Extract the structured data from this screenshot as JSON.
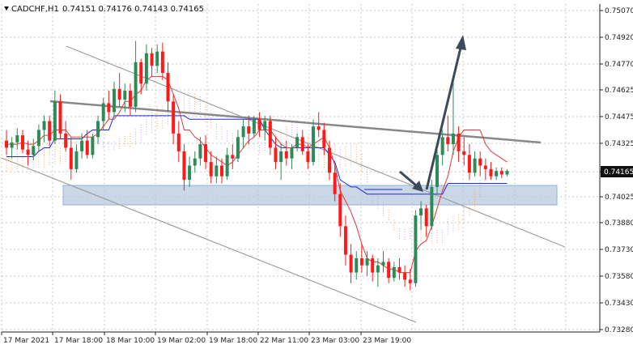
{
  "header": {
    "symbol_timeframe": "CADCHF,H1",
    "ohlc": "0.74151 0.74176 0.74143 0.74165"
  },
  "price_label": "0.74165",
  "colors": {
    "bull": "#2e8b57",
    "bear": "#ff1a1a",
    "tenkan": "#e53935",
    "kijun": "#1f2ad6",
    "chikou": "#9c4dcc",
    "cloud_lower": "#f5a35c",
    "cloud_upper": "#c9a3e6",
    "channel": "#9e9e9e",
    "trendline": "#888888",
    "arrow": "#3d4a5c",
    "support_zone": "#b7c9de"
  },
  "chart_data": {
    "type": "candlestick",
    "title": "",
    "xlabel": "",
    "ylabel": "",
    "ylim": [
      0.7328,
      0.7507
    ],
    "grid": true,
    "y_ticks": [
      "0.75070",
      "0.74920",
      "0.74770",
      "0.74625",
      "0.74475",
      "0.74325",
      "0.74165",
      "0.74025",
      "0.73880",
      "0.73730",
      "0.73580",
      "0.73430",
      "0.73280"
    ],
    "x_ticks": [
      "17 Mar 2021",
      "17 Mar 18:00",
      "18 Mar 10:00",
      "19 Mar 02:00",
      "19 Mar 18:00",
      "22 Mar 11:00",
      "23 Mar 03:00",
      "23 Mar 19:00"
    ],
    "candles": [
      [
        0.7434,
        0.744,
        0.7426,
        0.743
      ],
      [
        0.743,
        0.7436,
        0.7424,
        0.7433
      ],
      [
        0.7433,
        0.7441,
        0.7429,
        0.7437
      ],
      [
        0.7437,
        0.744,
        0.7427,
        0.7429
      ],
      [
        0.7429,
        0.7434,
        0.742,
        0.7426
      ],
      [
        0.7426,
        0.7435,
        0.7423,
        0.7431
      ],
      [
        0.7431,
        0.7443,
        0.7428,
        0.744
      ],
      [
        0.744,
        0.7448,
        0.7433,
        0.7445
      ],
      [
        0.7445,
        0.7448,
        0.7431,
        0.7434
      ],
      [
        0.7434,
        0.7462,
        0.7432,
        0.7456
      ],
      [
        0.7456,
        0.746,
        0.7435,
        0.7438
      ],
      [
        0.7438,
        0.7445,
        0.7428,
        0.743
      ],
      [
        0.743,
        0.7436,
        0.7412,
        0.7418
      ],
      [
        0.7418,
        0.7432,
        0.7416,
        0.7428
      ],
      [
        0.7428,
        0.7438,
        0.7424,
        0.7434
      ],
      [
        0.7434,
        0.744,
        0.7424,
        0.7426
      ],
      [
        0.7426,
        0.7438,
        0.7424,
        0.7436
      ],
      [
        0.7436,
        0.7448,
        0.7432,
        0.7445
      ],
      [
        0.7445,
        0.7458,
        0.744,
        0.7455
      ],
      [
        0.7455,
        0.7462,
        0.7446,
        0.745
      ],
      [
        0.745,
        0.7467,
        0.7447,
        0.7463
      ],
      [
        0.7463,
        0.7472,
        0.7453,
        0.7457
      ],
      [
        0.7457,
        0.7466,
        0.745,
        0.7462
      ],
      [
        0.7462,
        0.7466,
        0.7448,
        0.7453
      ],
      [
        0.7453,
        0.749,
        0.745,
        0.7478
      ],
      [
        0.7478,
        0.748,
        0.746,
        0.7466
      ],
      [
        0.7466,
        0.7488,
        0.7462,
        0.7483
      ],
      [
        0.7483,
        0.7486,
        0.747,
        0.7476
      ],
      [
        0.7476,
        0.7488,
        0.7472,
        0.7484
      ],
      [
        0.7484,
        0.7489,
        0.7468,
        0.7472
      ],
      [
        0.7472,
        0.7478,
        0.745,
        0.7456
      ],
      [
        0.7456,
        0.746,
        0.7432,
        0.7438
      ],
      [
        0.7438,
        0.7445,
        0.7422,
        0.7428
      ],
      [
        0.7428,
        0.7432,
        0.7406,
        0.7412
      ],
      [
        0.7412,
        0.7425,
        0.7408,
        0.742
      ],
      [
        0.742,
        0.7428,
        0.7416,
        0.7424
      ],
      [
        0.7424,
        0.7436,
        0.742,
        0.7432
      ],
      [
        0.7432,
        0.7437,
        0.7418,
        0.7422
      ],
      [
        0.7422,
        0.7428,
        0.741,
        0.7414
      ],
      [
        0.7414,
        0.7425,
        0.741,
        0.742
      ],
      [
        0.742,
        0.7424,
        0.741,
        0.7414
      ],
      [
        0.7414,
        0.743,
        0.7412,
        0.7426
      ],
      [
        0.7426,
        0.7432,
        0.7418,
        0.7424
      ],
      [
        0.7424,
        0.744,
        0.7422,
        0.7436
      ],
      [
        0.7436,
        0.7446,
        0.743,
        0.7442
      ],
      [
        0.7442,
        0.7448,
        0.7432,
        0.7438
      ],
      [
        0.7438,
        0.7448,
        0.7436,
        0.7446
      ],
      [
        0.7446,
        0.745,
        0.7436,
        0.744
      ],
      [
        0.744,
        0.7448,
        0.7434,
        0.7445
      ],
      [
        0.7445,
        0.7448,
        0.7426,
        0.743
      ],
      [
        0.743,
        0.7436,
        0.7418,
        0.7422
      ],
      [
        0.7422,
        0.7432,
        0.7412,
        0.7428
      ],
      [
        0.7428,
        0.7434,
        0.742,
        0.7424
      ],
      [
        0.7424,
        0.7432,
        0.7418,
        0.743
      ],
      [
        0.743,
        0.7438,
        0.7428,
        0.7436
      ],
      [
        0.7436,
        0.744,
        0.7426,
        0.7428
      ],
      [
        0.7428,
        0.7432,
        0.7418,
        0.7422
      ],
      [
        0.7422,
        0.7446,
        0.742,
        0.7442
      ],
      [
        0.7442,
        0.745,
        0.7436,
        0.744
      ],
      [
        0.744,
        0.7444,
        0.7426,
        0.743
      ],
      [
        0.743,
        0.7434,
        0.7412,
        0.7416
      ],
      [
        0.7416,
        0.742,
        0.74,
        0.7404
      ],
      [
        0.7404,
        0.741,
        0.738,
        0.7386
      ],
      [
        0.7386,
        0.7392,
        0.7364,
        0.737
      ],
      [
        0.737,
        0.7376,
        0.7354,
        0.736
      ],
      [
        0.736,
        0.7372,
        0.7356,
        0.7368
      ],
      [
        0.7368,
        0.7376,
        0.736,
        0.7364
      ],
      [
        0.7364,
        0.7372,
        0.7358,
        0.7368
      ],
      [
        0.7368,
        0.737,
        0.7355,
        0.736
      ],
      [
        0.736,
        0.7368,
        0.7352,
        0.7364
      ],
      [
        0.7364,
        0.7372,
        0.736,
        0.7366
      ],
      [
        0.7366,
        0.7368,
        0.7354,
        0.7357
      ],
      [
        0.7357,
        0.7366,
        0.7355,
        0.7363
      ],
      [
        0.7363,
        0.7368,
        0.7356,
        0.736
      ],
      [
        0.736,
        0.7364,
        0.7352,
        0.7356
      ],
      [
        0.7356,
        0.7362,
        0.735,
        0.7354
      ],
      [
        0.7354,
        0.7395,
        0.7352,
        0.7392
      ],
      [
        0.7392,
        0.74,
        0.7384,
        0.7396
      ],
      [
        0.7396,
        0.7398,
        0.738,
        0.7386
      ],
      [
        0.7386,
        0.7412,
        0.7384,
        0.7408
      ],
      [
        0.7408,
        0.743,
        0.7404,
        0.7426
      ],
      [
        0.7426,
        0.744,
        0.742,
        0.7436
      ],
      [
        0.7436,
        0.7448,
        0.7428,
        0.7432
      ],
      [
        0.7432,
        0.7468,
        0.7426,
        0.7438
      ],
      [
        0.7438,
        0.7442,
        0.7422,
        0.7428
      ],
      [
        0.7428,
        0.7436,
        0.742,
        0.7426
      ],
      [
        0.7426,
        0.7432,
        0.7412,
        0.7416
      ],
      [
        0.7416,
        0.7428,
        0.7414,
        0.7424
      ],
      [
        0.7424,
        0.7428,
        0.7414,
        0.742
      ],
      [
        0.742,
        0.7424,
        0.7412,
        0.7418
      ],
      [
        0.7418,
        0.7422,
        0.7412,
        0.7414
      ],
      [
        0.7414,
        0.7419,
        0.7412,
        0.7417
      ],
      [
        0.7417,
        0.7419,
        0.7413,
        0.7415
      ],
      [
        0.7415,
        0.7418,
        0.7414,
        0.7417
      ]
    ],
    "tenkan": [
      0.7432,
      0.7432,
      0.7432,
      0.7433,
      0.7432,
      0.7432,
      0.7434,
      0.7437,
      0.7437,
      0.744,
      0.744,
      0.744,
      0.7436,
      0.7436,
      0.7436,
      0.7436,
      0.7436,
      0.7438,
      0.7442,
      0.7446,
      0.7446,
      0.745,
      0.7456,
      0.7456,
      0.746,
      0.7462,
      0.7468,
      0.747,
      0.747,
      0.747,
      0.7468,
      0.746,
      0.7452,
      0.744,
      0.744,
      0.7436,
      0.7434,
      0.743,
      0.7426,
      0.7424,
      0.7422,
      0.742,
      0.7422,
      0.7426,
      0.743,
      0.7434,
      0.7436,
      0.744,
      0.744,
      0.744,
      0.7436,
      0.7432,
      0.743,
      0.743,
      0.7432,
      0.7432,
      0.743,
      0.7432,
      0.7434,
      0.7436,
      0.743,
      0.742,
      0.7406,
      0.74,
      0.7394,
      0.7386,
      0.7376,
      0.7368,
      0.7366,
      0.7366,
      0.7364,
      0.7362,
      0.7362,
      0.736,
      0.736,
      0.736,
      0.7372,
      0.7376,
      0.7378,
      0.7386,
      0.7396,
      0.7406,
      0.7414,
      0.7428,
      0.7436,
      0.744,
      0.744,
      0.744,
      0.744,
      0.7432,
      0.7428,
      0.7426,
      0.7424,
      0.7422
    ],
    "kijun": [
      0.7425,
      0.7425,
      0.7425,
      0.7425,
      0.7425,
      0.7425,
      0.7428,
      0.743,
      0.743,
      0.7435,
      0.7435,
      0.7435,
      0.7435,
      0.7435,
      0.7435,
      0.7438,
      0.744,
      0.744,
      0.744,
      0.744,
      0.7448,
      0.7448,
      0.7448,
      0.7448,
      0.7448,
      0.7448,
      0.7448,
      0.7448,
      0.7448,
      0.7448,
      0.7448,
      0.7448,
      0.7448,
      0.7448,
      0.7446,
      0.7446,
      0.7446,
      0.7446,
      0.7446,
      0.7446,
      0.7446,
      0.7446,
      0.7446,
      0.7446,
      0.7446,
      0.7446,
      0.7446,
      0.7446,
      0.744,
      0.7436,
      0.7432,
      0.743,
      0.743,
      0.743,
      0.743,
      0.743,
      0.743,
      0.743,
      0.743,
      0.743,
      0.7426,
      0.7422,
      0.7412,
      0.741,
      0.7408,
      0.7408,
      0.7406,
      0.7404,
      0.7404,
      0.7404,
      0.7404,
      0.7404,
      0.7404,
      0.7404,
      0.7404,
      0.7404,
      0.7404,
      0.7404,
      0.7404,
      0.7404,
      0.7404,
      0.7404,
      0.741,
      0.741,
      0.741,
      0.741,
      0.741,
      0.741,
      0.741,
      0.741,
      0.741,
      0.741,
      0.741,
      0.741
    ]
  }
}
